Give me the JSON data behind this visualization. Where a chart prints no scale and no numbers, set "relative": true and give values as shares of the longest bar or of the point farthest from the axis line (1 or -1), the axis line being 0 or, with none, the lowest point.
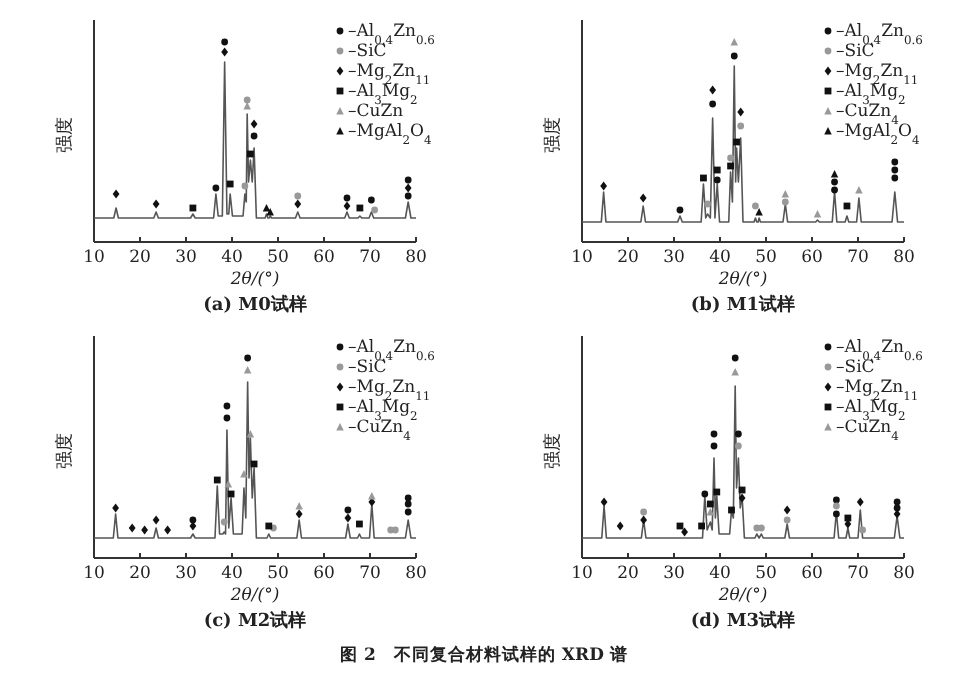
{
  "chart_data": [
    {
      "type": "line",
      "title": "(a) M0试样",
      "xlabel": "2θ/(°)",
      "ylabel": "强度",
      "relative": true,
      "xlim": [
        10,
        80
      ],
      "xticks": [
        10,
        20,
        30,
        40,
        50,
        60,
        70,
        80
      ],
      "tick_labels": "x",
      "legend": "top right",
      "marker": "none",
      "series": [
        {
          "type": "line",
          "color": "#555555",
          "x": [
            10,
            14.3,
            14.8,
            15.3,
            23,
            23.5,
            24,
            31,
            31.5,
            32,
            36,
            36.5,
            37,
            37.9,
            38.4,
            38.9,
            39.3,
            39.6,
            40.1,
            42.4,
            42.8,
            43.1,
            43.3,
            43.6,
            44.0,
            44.4,
            44.8,
            45.3,
            47.2,
            47.5,
            47.8,
            48.1,
            48.3,
            48.6,
            53.8,
            54.3,
            54.8,
            64.5,
            65,
            65.5,
            67.4,
            67.8,
            68.2,
            69.8,
            70.3,
            70.8,
            77.7,
            78.3,
            78.9,
            80
          ],
          "values": [
            0.12,
            0.12,
            0.17,
            0.12,
            0.12,
            0.15,
            0.12,
            0.12,
            0.14,
            0.12,
            0.12,
            0.24,
            0.13,
            0.13,
            0.9,
            0.14,
            0.14,
            0.24,
            0.13,
            0.13,
            0.24,
            0.2,
            0.64,
            0.3,
            0.41,
            0.3,
            0.47,
            0.12,
            0.12,
            0.14,
            0.12,
            0.12,
            0.13,
            0.12,
            0.12,
            0.15,
            0.12,
            0.12,
            0.15,
            0.12,
            0.12,
            0.13,
            0.12,
            0.12,
            0.15,
            0.12,
            0.12,
            0.2,
            0.12,
            0.12
          ]
        },
        {
          "type": "scatter",
          "name": "–Al$_{0.4}$Zn$_{0.6}$",
          "color": "#111111",
          "marker": "circle",
          "x": [
            36.5,
            38.4,
            44.8,
            65,
            70.3,
            78.3,
            78.3
          ],
          "values": [
            0.27,
            1.0,
            0.53,
            0.22,
            0.21,
            0.31,
            0.23
          ]
        },
        {
          "type": "scatter",
          "name": "–SiC",
          "color": "#999999",
          "marker": "circle",
          "x": [
            42.8,
            43.3,
            54.3,
            71
          ],
          "values": [
            0.28,
            0.71,
            0.23,
            0.16
          ]
        },
        {
          "type": "scatter",
          "name": "–Mg$_{2}$Zn$_{11}$",
          "color": "#111111",
          "marker": "diamond",
          "x": [
            14.8,
            23.5,
            38.4,
            44.8,
            54.3,
            65,
            78.3
          ],
          "values": [
            0.24,
            0.19,
            0.95,
            0.59,
            0.19,
            0.18,
            0.27
          ]
        },
        {
          "type": "scatter",
          "name": "–Al$_{3}$Mg$_{2}$",
          "color": "#111111",
          "marker": "square",
          "x": [
            31.5,
            39.6,
            44.0,
            67.8
          ],
          "values": [
            0.17,
            0.29,
            0.44,
            0.17
          ]
        },
        {
          "type": "scatter",
          "name": "–CuZn",
          "color": "#999999",
          "marker": "triangle",
          "x": [
            43.3
          ],
          "values": [
            0.68
          ]
        },
        {
          "type": "scatter",
          "name": "–MgAl$_{2}$O$_{4}$",
          "color": "#111111",
          "marker": "triangle",
          "x": [
            47.5,
            48.3
          ],
          "values": [
            0.17,
            0.15
          ]
        }
      ]
    },
    {
      "type": "line",
      "title": "(b) M1试样",
      "xlabel": "2θ/(°)",
      "ylabel": "强度",
      "relative": true,
      "xlim": [
        10,
        80
      ],
      "xticks": [
        10,
        20,
        30,
        40,
        50,
        60,
        70,
        80
      ],
      "tick_labels": "x",
      "legend": "top right",
      "marker": "none",
      "series": [
        {
          "type": "line",
          "color": "#555555",
          "x": [
            10,
            14.2,
            14.7,
            15.2,
            22.8,
            23.3,
            23.8,
            30.8,
            31.3,
            31.8,
            35.9,
            36.4,
            36.9,
            37.3,
            37.9,
            38.4,
            38.9,
            39.4,
            39.9,
            41.9,
            42.3,
            42.7,
            43.1,
            43.4,
            43.6,
            44.0,
            44.5,
            45.0,
            47.4,
            47.7,
            48.0,
            48.3,
            48.5,
            48.8,
            53.7,
            54.2,
            54.7,
            60.8,
            61.2,
            61.6,
            64.4,
            64.9,
            65.4,
            67.2,
            67.6,
            68.0,
            69.7,
            70.2,
            70.7,
            77.4,
            78.0,
            78.6,
            80
          ],
          "values": [
            0.1,
            0.1,
            0.25,
            0.1,
            0.1,
            0.18,
            0.1,
            0.1,
            0.13,
            0.1,
            0.1,
            0.29,
            0.12,
            0.14,
            0.12,
            0.62,
            0.12,
            0.29,
            0.1,
            0.1,
            0.35,
            0.2,
            0.88,
            0.3,
            0.47,
            0.3,
            0.52,
            0.1,
            0.1,
            0.12,
            0.1,
            0.1,
            0.12,
            0.1,
            0.1,
            0.19,
            0.1,
            0.1,
            0.11,
            0.1,
            0.1,
            0.25,
            0.1,
            0.1,
            0.13,
            0.1,
            0.1,
            0.22,
            0.1,
            0.1,
            0.25,
            0.1,
            0.1
          ]
        },
        {
          "type": "scatter",
          "name": "–Al$_{0.4}$Zn$_{0.6}$",
          "color": "#111111",
          "marker": "circle",
          "x": [
            31.3,
            38.4,
            39.4,
            43.1,
            64.9,
            64.9,
            78.0,
            78.0,
            78.0
          ],
          "values": [
            0.16,
            0.69,
            0.31,
            0.93,
            0.26,
            0.3,
            0.32,
            0.36,
            0.4
          ]
        },
        {
          "type": "scatter",
          "name": "–SiC",
          "color": "#999999",
          "marker": "circle",
          "x": [
            37.3,
            42.3,
            44.5,
            47.7,
            54.2
          ],
          "values": [
            0.19,
            0.42,
            0.58,
            0.18,
            0.2
          ]
        },
        {
          "type": "scatter",
          "name": "–Mg$_{2}$Zn$_{11}$",
          "color": "#111111",
          "marker": "diamond",
          "x": [
            14.7,
            23.3,
            38.4,
            44.5
          ],
          "values": [
            0.28,
            0.22,
            0.76,
            0.65
          ]
        },
        {
          "type": "scatter",
          "name": "–Al$_{3}$Mg$_{2}$",
          "color": "#111111",
          "marker": "square",
          "x": [
            36.4,
            39.4,
            42.3,
            43.6,
            67.6
          ],
          "values": [
            0.32,
            0.36,
            0.38,
            0.5,
            0.18
          ]
        },
        {
          "type": "scatter",
          "name": "–CuZn$_{4}$",
          "color": "#999999",
          "marker": "triangle",
          "x": [
            43.1,
            54.2,
            61.2,
            70.2
          ],
          "values": [
            1.0,
            0.24,
            0.14,
            0.26
          ]
        },
        {
          "type": "scatter",
          "name": "–MgAl$_{2}$O$_{4}$",
          "color": "#111111",
          "marker": "triangle",
          "x": [
            48.5,
            64.9
          ],
          "values": [
            0.15,
            0.34
          ]
        }
      ]
    },
    {
      "type": "line",
      "title": "(c) M2试样",
      "xlabel": "2θ/(°)",
      "ylabel": "强度",
      "relative": true,
      "xlim": [
        10,
        80
      ],
      "xticks": [
        10,
        20,
        30,
        40,
        50,
        60,
        70,
        80
      ],
      "tick_labels": "x",
      "legend": "top right",
      "marker": "none",
      "series": [
        {
          "type": "line",
          "color": "#555555",
          "x": [
            10,
            14.2,
            14.7,
            15.2,
            23.0,
            23.5,
            24.0,
            31.0,
            31.5,
            32.0,
            36.3,
            36.8,
            37.3,
            38.0,
            38.3,
            38.6,
            38.9,
            39.3,
            39.8,
            40.3,
            42.2,
            42.6,
            43.0,
            43.4,
            43.7,
            44.0,
            44.4,
            44.8,
            45.3,
            47.6,
            48.0,
            48.4,
            54.1,
            54.6,
            55.1,
            64.7,
            65.2,
            65.7,
            67.3,
            67.7,
            68.1,
            69.9,
            70.4,
            70.9,
            77.7,
            78.3,
            78.9,
            80
          ],
          "values": [
            0.1,
            0.1,
            0.22,
            0.1,
            0.1,
            0.15,
            0.1,
            0.1,
            0.12,
            0.1,
            0.1,
            0.36,
            0.12,
            0.12,
            0.13,
            0.12,
            0.64,
            0.15,
            0.3,
            0.12,
            0.12,
            0.35,
            0.2,
            0.88,
            0.4,
            0.6,
            0.3,
            0.45,
            0.1,
            0.1,
            0.12,
            0.1,
            0.1,
            0.19,
            0.1,
            0.1,
            0.17,
            0.1,
            0.1,
            0.12,
            0.1,
            0.1,
            0.27,
            0.1,
            0.1,
            0.19,
            0.1,
            0.1
          ]
        },
        {
          "type": "scatter",
          "name": "–Al$_{0.4}$Zn$_{0.6}$",
          "color": "#111111",
          "marker": "circle",
          "x": [
            31.5,
            38.9,
            38.9,
            43.4,
            65.2,
            78.3,
            78.3,
            78.3
          ],
          "values": [
            0.19,
            0.76,
            0.7,
            1.0,
            0.24,
            0.3,
            0.27,
            0.23
          ]
        },
        {
          "type": "scatter",
          "name": "–SiC",
          "color": "#999999",
          "marker": "circle",
          "x": [
            38.3,
            49,
            74.5,
            75.5
          ],
          "values": [
            0.18,
            0.15,
            0.14,
            0.14
          ]
        },
        {
          "type": "scatter",
          "name": "–Mg$_{2}$Zn$_{11}$",
          "color": "#111111",
          "marker": "diamond",
          "x": [
            14.7,
            18.3,
            21,
            23.5,
            26,
            31.5,
            54.6,
            65.2,
            70.4
          ],
          "values": [
            0.25,
            0.15,
            0.14,
            0.19,
            0.14,
            0.16,
            0.22,
            0.2,
            0.28
          ]
        },
        {
          "type": "scatter",
          "name": "–Al$_{3}$Mg$_{2}$",
          "color": "#111111",
          "marker": "square",
          "x": [
            36.8,
            39.8,
            44.8,
            48,
            67.7
          ],
          "values": [
            0.39,
            0.32,
            0.47,
            0.16,
            0.17
          ]
        },
        {
          "type": "scatter",
          "name": "–CuZn$_{4}$",
          "color": "#999999",
          "marker": "triangle",
          "x": [
            39.2,
            42.6,
            43.4,
            44.0,
            54.6,
            70.4
          ],
          "values": [
            0.37,
            0.42,
            0.94,
            0.62,
            0.26,
            0.31
          ]
        }
      ]
    },
    {
      "type": "line",
      "title": "(d) M3试样",
      "xlabel": "2θ/(°)",
      "ylabel": "强度",
      "relative": true,
      "xlim": [
        10,
        80
      ],
      "xticks": [
        10,
        20,
        30,
        40,
        50,
        60,
        70,
        80
      ],
      "tick_labels": "x",
      "legend": "top right",
      "marker": "none",
      "annotations": [
        "图 2　不同复合材料试样的 XRD 谱"
      ],
      "series": [
        {
          "type": "line",
          "color": "#555555",
          "x": [
            10,
            14.3,
            14.8,
            15.3,
            22.9,
            23.4,
            23.9,
            36.2,
            36.7,
            37.2,
            37.9,
            38.3,
            38.7,
            39.0,
            39.3,
            39.8,
            42.1,
            42.5,
            42.9,
            43.3,
            43.6,
            44.0,
            44.4,
            44.8,
            45.3,
            47.6,
            48.0,
            48.5,
            49.0,
            49.4,
            54.1,
            54.6,
            55.1,
            64.8,
            65.3,
            65.8,
            67.4,
            67.8,
            68.2,
            70.0,
            70.5,
            71.0,
            77.9,
            78.5,
            79.1,
            80
          ],
          "values": [
            0.1,
            0.1,
            0.26,
            0.1,
            0.1,
            0.19,
            0.1,
            0.1,
            0.31,
            0.14,
            0.18,
            0.14,
            0.5,
            0.2,
            0.31,
            0.12,
            0.12,
            0.24,
            0.2,
            0.86,
            0.35,
            0.5,
            0.25,
            0.31,
            0.1,
            0.1,
            0.12,
            0.1,
            0.12,
            0.1,
            0.1,
            0.17,
            0.1,
            0.1,
            0.23,
            0.1,
            0.1,
            0.15,
            0.1,
            0.1,
            0.24,
            0.1,
            0.1,
            0.21,
            0.1,
            0.1
          ]
        },
        {
          "type": "scatter",
          "name": "–Al$_{0.4}$Zn$_{0.6}$",
          "color": "#111111",
          "marker": "circle",
          "x": [
            36.7,
            38.7,
            38.7,
            43.3,
            44.0,
            65.3,
            65.3,
            78.5,
            78.5
          ],
          "values": [
            0.32,
            0.56,
            0.62,
            1.0,
            0.62,
            0.29,
            0.22,
            0.28,
            0.25
          ]
        },
        {
          "type": "scatter",
          "name": "–SiC",
          "color": "#999999",
          "marker": "circle",
          "x": [
            23.4,
            44.0,
            48,
            49,
            54.6,
            65.3,
            71
          ],
          "values": [
            0.23,
            0.56,
            0.15,
            0.15,
            0.19,
            0.26,
            0.14
          ]
        },
        {
          "type": "scatter",
          "name": "–Mg$_{2}$Zn$_{11}$",
          "color": "#111111",
          "marker": "diamond",
          "x": [
            14.8,
            18.3,
            23.4,
            32.3,
            44.8,
            54.6,
            67.8,
            70.5,
            78.5
          ],
          "values": [
            0.28,
            0.16,
            0.19,
            0.13,
            0.3,
            0.24,
            0.17,
            0.28,
            0.22
          ]
        },
        {
          "type": "scatter",
          "name": "–Al$_{3}$Mg$_{2}$",
          "color": "#111111",
          "marker": "square",
          "x": [
            31.3,
            36,
            37.9,
            39.3,
            42.5,
            44.8,
            67.8
          ],
          "values": [
            0.16,
            0.16,
            0.27,
            0.33,
            0.24,
            0.34,
            0.2
          ]
        },
        {
          "type": "scatter",
          "name": "–CuZn$_{4}$",
          "color": "#999999",
          "marker": "triangle",
          "x": [
            37.9,
            43.3
          ],
          "values": [
            0.23,
            0.93
          ]
        }
      ]
    }
  ]
}
